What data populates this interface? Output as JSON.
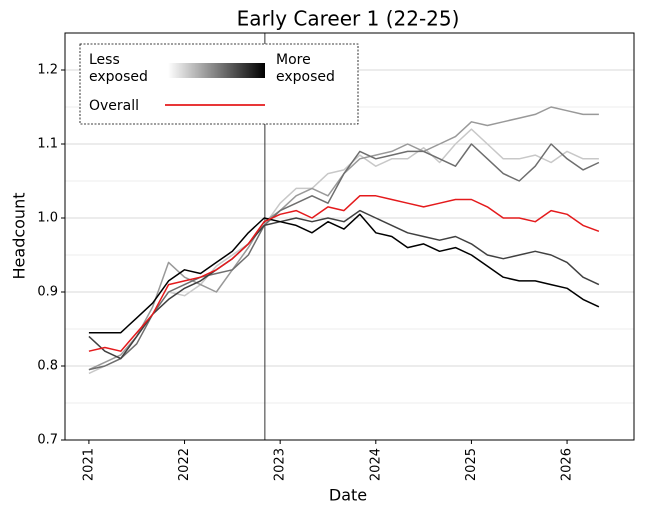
{
  "chart_data": {
    "type": "line",
    "title": "Early Career 1 (22-25)",
    "xlabel": "Date",
    "ylabel": "Headcount",
    "x": [
      2021,
      2021.167,
      2021.333,
      2021.5,
      2021.667,
      2021.833,
      2022,
      2022.167,
      2022.333,
      2022.5,
      2022.667,
      2022.833,
      2023,
      2023.167,
      2023.333,
      2023.5,
      2023.667,
      2023.833,
      2024,
      2024.167,
      2024.333,
      2024.5,
      2024.667,
      2024.833,
      2025,
      2025.167,
      2025.333,
      2025.5,
      2025.667,
      2025.833,
      2026,
      2026.167,
      2026.333
    ],
    "series": [
      {
        "color": "#c8c8c8",
        "values": [
          0.79,
          0.8,
          0.81,
          0.84,
          0.87,
          0.9,
          0.895,
          0.91,
          0.935,
          0.95,
          0.965,
          0.99,
          1.02,
          1.04,
          1.04,
          1.06,
          1.065,
          1.085,
          1.07,
          1.08,
          1.08,
          1.095,
          1.075,
          1.1,
          1.12,
          1.1,
          1.08,
          1.08,
          1.085,
          1.075,
          1.09,
          1.08,
          1.08
        ]
      },
      {
        "color": "#999999",
        "values": [
          0.795,
          0.805,
          0.815,
          0.84,
          0.88,
          0.94,
          0.92,
          0.91,
          0.9,
          0.93,
          0.96,
          0.995,
          1.01,
          1.03,
          1.04,
          1.03,
          1.06,
          1.08,
          1.085,
          1.09,
          1.1,
          1.09,
          1.1,
          1.11,
          1.13,
          1.125,
          1.13,
          1.135,
          1.14,
          1.15,
          1.145,
          1.14,
          1.14
        ]
      },
      {
        "color": "#6e6e6e",
        "values": [
          0.795,
          0.8,
          0.81,
          0.83,
          0.87,
          0.9,
          0.91,
          0.92,
          0.925,
          0.93,
          0.95,
          0.99,
          1.01,
          1.02,
          1.03,
          1.02,
          1.06,
          1.09,
          1.08,
          1.085,
          1.09,
          1.09,
          1.08,
          1.07,
          1.1,
          1.08,
          1.06,
          1.05,
          1.07,
          1.1,
          1.08,
          1.065,
          1.075
        ]
      },
      {
        "color": "#404040",
        "values": [
          0.84,
          0.82,
          0.81,
          0.84,
          0.87,
          0.89,
          0.905,
          0.915,
          0.93,
          0.945,
          0.965,
          0.99,
          0.995,
          1.0,
          0.995,
          1.0,
          0.995,
          1.01,
          1.0,
          0.99,
          0.98,
          0.975,
          0.97,
          0.975,
          0.965,
          0.95,
          0.945,
          0.95,
          0.955,
          0.95,
          0.94,
          0.92,
          0.91
        ]
      },
      {
        "color": "#000000",
        "values": [
          0.845,
          0.845,
          0.845,
          0.865,
          0.885,
          0.915,
          0.93,
          0.925,
          0.94,
          0.955,
          0.98,
          1.0,
          0.995,
          0.99,
          0.98,
          0.995,
          0.985,
          1.005,
          0.98,
          0.975,
          0.96,
          0.965,
          0.955,
          0.96,
          0.95,
          0.935,
          0.92,
          0.915,
          0.915,
          0.91,
          0.905,
          0.89,
          0.88
        ]
      },
      {
        "name": "Overall",
        "color": "#e41a1c",
        "values": [
          0.82,
          0.825,
          0.82,
          0.845,
          0.87,
          0.91,
          0.915,
          0.92,
          0.93,
          0.945,
          0.965,
          0.995,
          1.005,
          1.01,
          1.0,
          1.015,
          1.01,
          1.03,
          1.03,
          1.025,
          1.02,
          1.015,
          1.02,
          1.025,
          1.025,
          1.015,
          1.0,
          1.0,
          0.995,
          1.01,
          1.005,
          0.99,
          0.982
        ]
      }
    ],
    "legend": {
      "less": [
        "Less",
        "exposed"
      ],
      "more": [
        "More",
        "exposed"
      ],
      "gradient": [
        "#ffffff",
        "#000000"
      ]
    },
    "reference_x": 2022.84,
    "xlim": [
      2020.75,
      2026.7
    ],
    "xticks": [
      2021,
      2022,
      2023,
      2024,
      2025,
      2026
    ],
    "ylim": [
      0.7,
      1.25
    ],
    "yticks": [
      0.7,
      0.8,
      0.9,
      {
        "value": 1,
        "label": "1.0"
      },
      1.1,
      1.2
    ],
    "yminor": [
      0.75,
      0.85,
      0.95,
      1.05,
      1.15,
      1.25
    ],
    "grid": true
  }
}
